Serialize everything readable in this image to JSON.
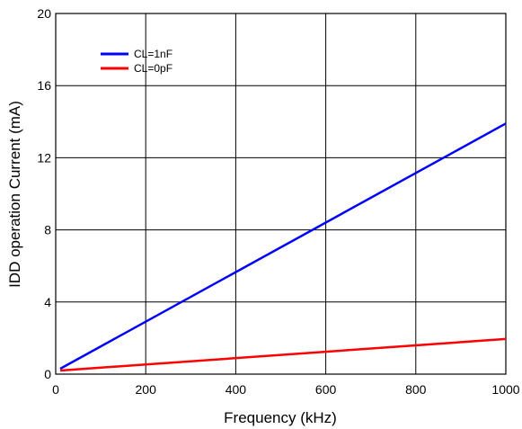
{
  "chart_data": {
    "type": "line",
    "title": "",
    "xlabel": "Frequency (kHz)",
    "ylabel": "IDD operation Current (mA)",
    "xlim": [
      0,
      1000
    ],
    "ylim": [
      0,
      20
    ],
    "x_ticks": [
      0,
      200,
      400,
      600,
      800,
      1000
    ],
    "y_ticks": [
      0,
      4,
      8,
      12,
      16,
      20
    ],
    "grid": true,
    "legend_position": "top-left",
    "series": [
      {
        "name": "CL=1nF",
        "color": "#0000ff",
        "x": [
          10,
          1000
        ],
        "y": [
          0.3,
          13.9
        ]
      },
      {
        "name": "CL=0pF",
        "color": "#ff0000",
        "x": [
          10,
          1000
        ],
        "y": [
          0.2,
          1.95
        ]
      }
    ]
  }
}
